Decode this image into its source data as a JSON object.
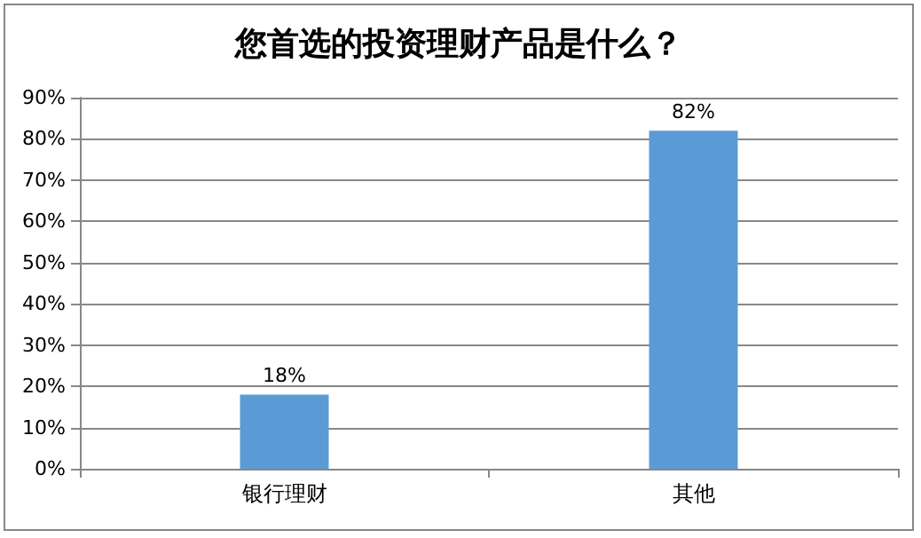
{
  "chart_data": {
    "type": "bar",
    "title": "您首选的投资理财产品是什么？",
    "categories": [
      "银行理财",
      "其他"
    ],
    "values": [
      18,
      82
    ],
    "color": "#5b9bd5",
    "value_labels": [
      "18%",
      "82%"
    ],
    "ylim": [
      0,
      90
    ],
    "yticks": [
      {
        "value": 0,
        "label": "0%"
      },
      {
        "value": 10,
        "label": "10%"
      },
      {
        "value": 20,
        "label": "20%"
      },
      {
        "value": 30,
        "label": "30%"
      },
      {
        "value": 40,
        "label": "40%"
      },
      {
        "value": 50,
        "label": "50%"
      },
      {
        "value": 60,
        "label": "60%"
      },
      {
        "value": 70,
        "label": "70%"
      },
      {
        "value": 80,
        "label": "80%"
      },
      {
        "value": 90,
        "label": "90%"
      }
    ],
    "grid": "y"
  }
}
